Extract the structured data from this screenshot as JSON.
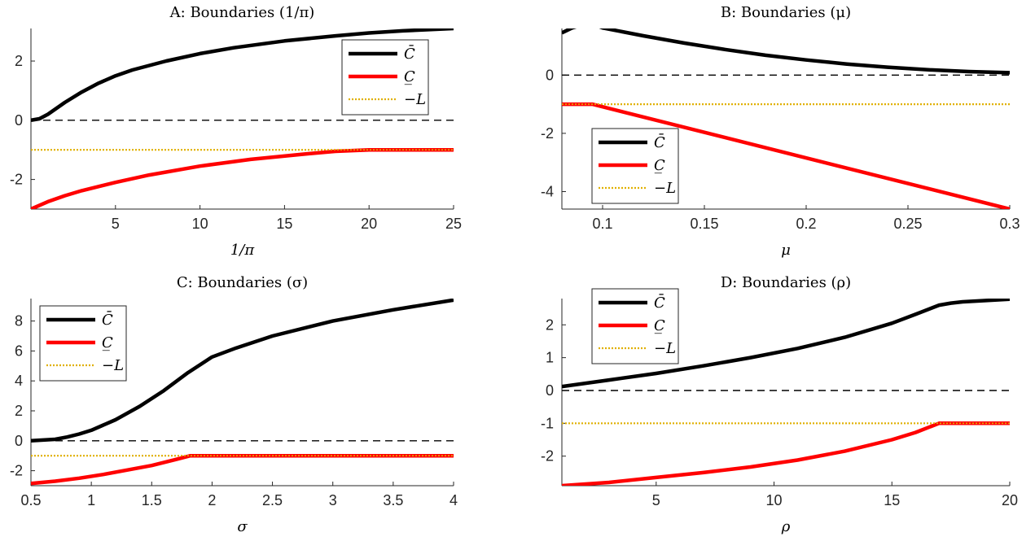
{
  "colors": {
    "upper": "#000000",
    "lower": "#ff0000",
    "negL": "#e0b000",
    "zero": "#000000",
    "axis": "#262626"
  },
  "chart_data": [
    {
      "type": "line",
      "title": "A: Boundaries (1/π)",
      "xlabel": "1/π",
      "ylabel": "",
      "xlim": [
        0,
        25
      ],
      "ylim": [
        -3,
        3.1
      ],
      "xticks": [
        5,
        10,
        15,
        20,
        25
      ],
      "xtick_labels": [
        "5",
        "10",
        "15",
        "20",
        "25"
      ],
      "yticks": [
        -2,
        0,
        2
      ],
      "ytick_labels": [
        "-2",
        "0",
        "2"
      ],
      "legend": {
        "position": "top-right",
        "entries": [
          "C̄",
          "C̲",
          "−L"
        ]
      },
      "series": [
        {
          "name": "C̄",
          "style": "solid",
          "color_key": "upper",
          "x": [
            0,
            0.5,
            1,
            2,
            3,
            4,
            5,
            6,
            8,
            10,
            12,
            15,
            18,
            20,
            22,
            25
          ],
          "y": [
            0,
            0.05,
            0.2,
            0.6,
            0.95,
            1.25,
            1.5,
            1.7,
            2.0,
            2.25,
            2.45,
            2.68,
            2.85,
            2.95,
            3.02,
            3.1
          ]
        },
        {
          "name": "C̲",
          "style": "solid",
          "color_key": "lower",
          "x": [
            0,
            1,
            2,
            3,
            5,
            7,
            10,
            13,
            16,
            18,
            20,
            25
          ],
          "y": [
            -3.0,
            -2.75,
            -2.55,
            -2.38,
            -2.1,
            -1.85,
            -1.55,
            -1.32,
            -1.15,
            -1.05,
            -1.0,
            -1.0
          ]
        },
        {
          "name": "−L",
          "style": "dotted",
          "color_key": "negL",
          "x": [
            0,
            25
          ],
          "y": [
            -1,
            -1
          ]
        },
        {
          "name": "",
          "style": "dashed",
          "color_key": "zero",
          "x": [
            0,
            25
          ],
          "y": [
            0,
            0
          ]
        }
      ]
    },
    {
      "type": "line",
      "title": "B: Boundaries (μ)",
      "xlabel": "μ",
      "ylabel": "",
      "xlim": [
        0.08,
        0.3
      ],
      "ylim": [
        -4.6,
        1.6
      ],
      "xticks": [
        0.1,
        0.15,
        0.2,
        0.25,
        0.3
      ],
      "xtick_labels": [
        "0.1",
        "0.15",
        "0.2",
        "0.25",
        "0.3"
      ],
      "yticks": [
        -4,
        -2,
        0
      ],
      "ytick_labels": [
        "-4",
        "-2",
        "0"
      ],
      "legend": {
        "position": "bottom-left",
        "entries": [
          "C̄",
          "C̲",
          "−L"
        ]
      },
      "series": [
        {
          "name": "C̄",
          "style": "solid",
          "color_key": "upper",
          "x": [
            0.08,
            0.085,
            0.09,
            0.093,
            0.097,
            0.1,
            0.12,
            0.14,
            0.16,
            0.18,
            0.2,
            0.22,
            0.24,
            0.26,
            0.28,
            0.3
          ],
          "y": [
            1.45,
            1.62,
            1.72,
            1.73,
            1.7,
            1.62,
            1.35,
            1.1,
            0.88,
            0.68,
            0.52,
            0.38,
            0.27,
            0.18,
            0.12,
            0.08
          ]
        },
        {
          "name": "C̲",
          "style": "solid",
          "color_key": "lower",
          "x": [
            0.08,
            0.095,
            0.3
          ],
          "y": [
            -1.0,
            -1.0,
            -4.6
          ]
        },
        {
          "name": "−L",
          "style": "dotted",
          "color_key": "negL",
          "x": [
            0.08,
            0.3
          ],
          "y": [
            -1,
            -1
          ]
        },
        {
          "name": "",
          "style": "dashed",
          "color_key": "zero",
          "x": [
            0.08,
            0.3
          ],
          "y": [
            0,
            0
          ]
        }
      ]
    },
    {
      "type": "line",
      "title": "C: Boundaries (σ)",
      "xlabel": "σ",
      "ylabel": "",
      "xlim": [
        0.5,
        4
      ],
      "ylim": [
        -3,
        9.5
      ],
      "xticks": [
        0.5,
        1,
        1.5,
        2,
        2.5,
        3,
        3.5,
        4
      ],
      "xtick_labels": [
        "0.5",
        "1",
        "1.5",
        "2",
        "2.5",
        "3",
        "3.5",
        "4"
      ],
      "yticks": [
        -2,
        0,
        2,
        4,
        6,
        8
      ],
      "ytick_labels": [
        "-2",
        "0",
        "2",
        "4",
        "6",
        "8"
      ],
      "legend": {
        "position": "top-left",
        "entries": [
          "C̄",
          "C̲",
          "−L"
        ]
      },
      "series": [
        {
          "name": "C̄",
          "style": "solid",
          "color_key": "upper",
          "x": [
            0.5,
            0.6,
            0.7,
            0.8,
            0.9,
            1.0,
            1.2,
            1.4,
            1.6,
            1.8,
            2.0,
            2.2,
            2.5,
            3.0,
            3.5,
            4.0
          ],
          "y": [
            0.0,
            0.05,
            0.1,
            0.25,
            0.45,
            0.7,
            1.4,
            2.3,
            3.35,
            4.55,
            5.6,
            6.2,
            7.0,
            8.0,
            8.75,
            9.4
          ]
        },
        {
          "name": "C̲",
          "style": "solid",
          "color_key": "lower",
          "x": [
            0.5,
            0.7,
            0.9,
            1.1,
            1.3,
            1.5,
            1.7,
            1.82,
            2.0,
            4.0
          ],
          "y": [
            -2.85,
            -2.7,
            -2.5,
            -2.25,
            -1.95,
            -1.65,
            -1.25,
            -1.0,
            -1.0,
            -1.0
          ]
        },
        {
          "name": "−L",
          "style": "dotted",
          "color_key": "negL",
          "x": [
            0.5,
            4
          ],
          "y": [
            -1,
            -1
          ]
        },
        {
          "name": "",
          "style": "dashed",
          "color_key": "zero",
          "x": [
            0.5,
            4
          ],
          "y": [
            0,
            0
          ]
        }
      ]
    },
    {
      "type": "line",
      "title": "D: Boundaries (ρ)",
      "xlabel": "ρ",
      "ylabel": "",
      "xlim": [
        1,
        20
      ],
      "ylim": [
        -2.9,
        2.8
      ],
      "xticks": [
        5,
        10,
        15,
        20
      ],
      "xtick_labels": [
        "5",
        "10",
        "15",
        "20"
      ],
      "yticks": [
        -2,
        -1,
        0,
        1,
        2
      ],
      "ytick_labels": [
        "-2",
        "-1",
        "0",
        "1",
        "2"
      ],
      "legend": {
        "position": "top-left",
        "entries": [
          "C̄",
          "C̲",
          "−L"
        ]
      },
      "series": [
        {
          "name": "C̄",
          "style": "solid",
          "color_key": "upper",
          "x": [
            1,
            3,
            5,
            7,
            9,
            11,
            13,
            15,
            16,
            17,
            17.5,
            18,
            19,
            20
          ],
          "y": [
            0.12,
            0.32,
            0.52,
            0.75,
            1.0,
            1.28,
            1.62,
            2.05,
            2.32,
            2.6,
            2.66,
            2.7,
            2.74,
            2.78
          ]
        },
        {
          "name": "C̲",
          "style": "solid",
          "color_key": "lower",
          "x": [
            1,
            3,
            5,
            7,
            9,
            11,
            13,
            15,
            16,
            17,
            17.5,
            20
          ],
          "y": [
            -2.9,
            -2.8,
            -2.65,
            -2.5,
            -2.33,
            -2.12,
            -1.85,
            -1.5,
            -1.28,
            -1.0,
            -1.0,
            -1.0
          ]
        },
        {
          "name": "−L",
          "style": "dotted",
          "color_key": "negL",
          "x": [
            1,
            20
          ],
          "y": [
            -1,
            -1
          ]
        },
        {
          "name": "",
          "style": "dashed",
          "color_key": "zero",
          "x": [
            1,
            20
          ],
          "y": [
            0,
            0
          ]
        }
      ]
    }
  ]
}
